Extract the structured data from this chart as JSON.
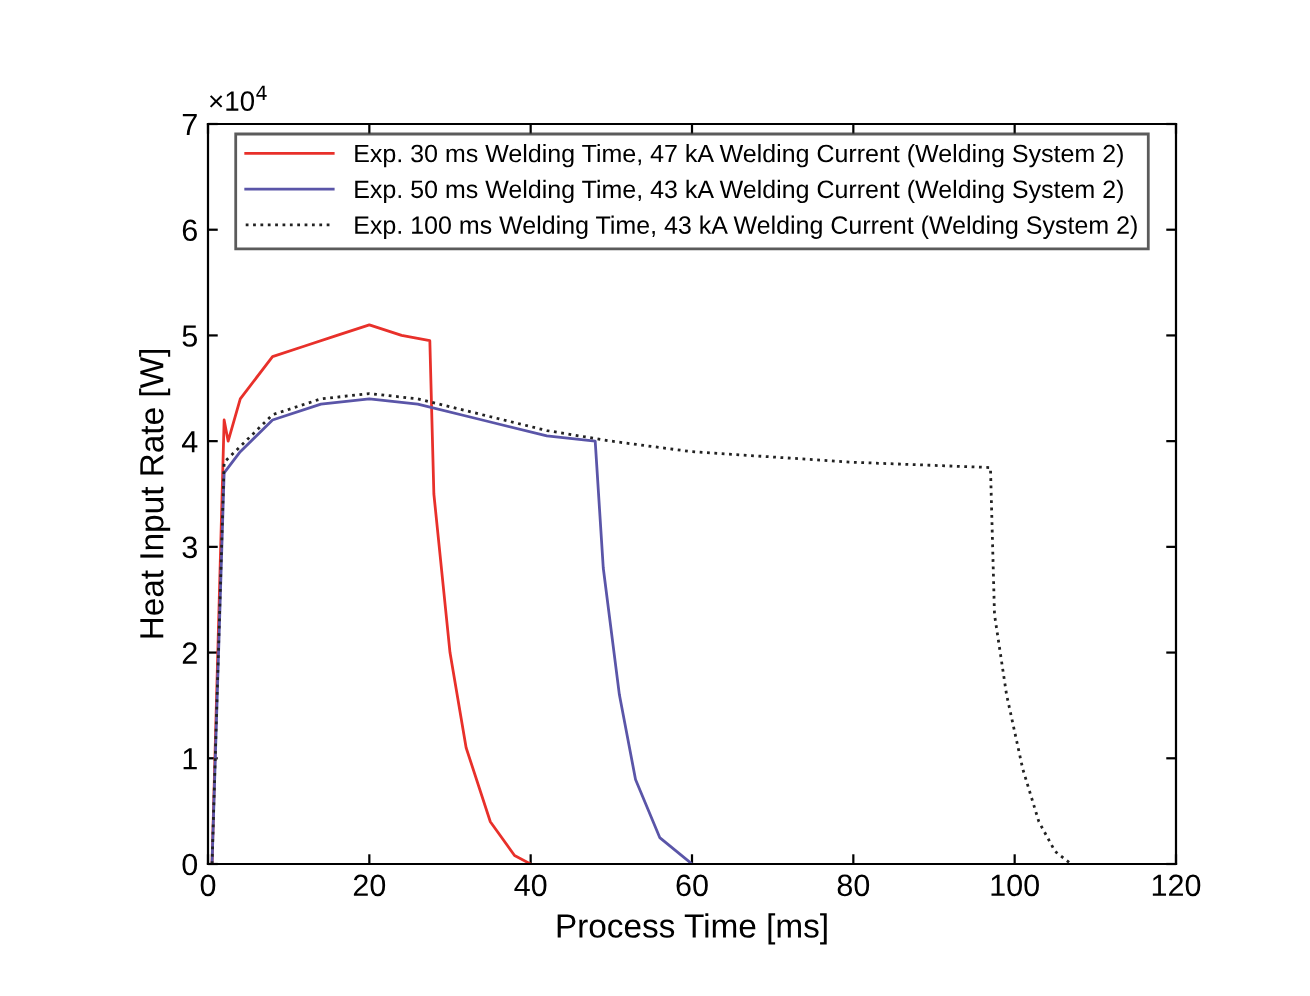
{
  "chart_data": {
    "type": "line",
    "xlabel": "Process Time [ms]",
    "ylabel": "Heat Input Rate [W]",
    "annotations": [
      "×10$^{4}$"
    ],
    "xlim": [
      0,
      120
    ],
    "xticks": [
      0,
      20,
      40,
      60,
      80,
      100,
      120
    ],
    "ylim": [
      0,
      7
    ],
    "yticks": [
      0,
      1,
      2,
      3,
      4,
      5,
      6,
      7
    ],
    "grid": false,
    "legend": "top",
    "series": [
      {
        "name": "Exp. 30 ms Welding Time, 47 kA Welding Current (Welding System 2)",
        "color": "#e8302a",
        "line_style": "solid",
        "x": [
          0.5,
          2,
          2.5,
          4,
          8,
          12,
          16,
          20,
          24,
          27.5,
          28,
          30,
          32,
          35,
          38,
          40
        ],
        "values": [
          0,
          4.2,
          4.0,
          4.4,
          4.8,
          4.9,
          5.0,
          5.1,
          5.0,
          4.95,
          3.5,
          2.0,
          1.1,
          0.4,
          0.08,
          0
        ]
      },
      {
        "name": "Exp. 50 ms Welding Time, 43 kA Welding Current (Welding System 2)",
        "color": "#5a55a8",
        "line_style": "solid",
        "x": [
          0.5,
          2,
          4,
          8,
          14,
          20,
          26,
          34,
          42,
          48,
          49,
          51,
          53,
          56,
          60
        ],
        "values": [
          0,
          3.7,
          3.9,
          4.2,
          4.35,
          4.4,
          4.35,
          4.2,
          4.05,
          4.0,
          2.8,
          1.6,
          0.8,
          0.25,
          0
        ]
      },
      {
        "name": "Exp. 100 ms Welding Time, 43 kA Welding Current (Welding System 2)",
        "color": "#222222",
        "line_style": "dotted",
        "x": [
          0.5,
          2,
          4,
          8,
          14,
          20,
          26,
          34,
          42,
          50,
          60,
          80,
          97,
          97.5,
          99,
          101,
          103,
          105,
          107
        ],
        "values": [
          0,
          3.8,
          3.95,
          4.25,
          4.4,
          4.45,
          4.4,
          4.25,
          4.1,
          4.0,
          3.9,
          3.8,
          3.75,
          2.36,
          1.6,
          0.9,
          0.4,
          0.12,
          0
        ]
      }
    ]
  }
}
